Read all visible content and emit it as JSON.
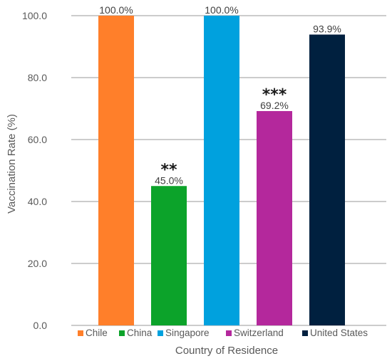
{
  "chart_data": {
    "type": "bar",
    "categories": [
      "Chile",
      "China",
      "Singapore",
      "Switzerland",
      "United States"
    ],
    "values": [
      100.0,
      45.0,
      100.0,
      69.2,
      93.9
    ],
    "data_labels": [
      "100.0%",
      "45.0%",
      "100.0%",
      "69.2%",
      "93.9%"
    ],
    "annotations": [
      "",
      "**",
      "",
      "***",
      ""
    ],
    "colors": [
      "#ff7f2a",
      "#0ca32a",
      "#00a1de",
      "#b4289c",
      "#00203f"
    ],
    "ylim": [
      0,
      100
    ],
    "yticks": [
      "0.0",
      "20.0",
      "40.0",
      "60.0",
      "80.0",
      "100.0"
    ],
    "ytick_values": [
      0,
      20,
      40,
      60,
      80,
      100
    ],
    "xlabel": "Country of Residence",
    "ylabel": "Vaccination Rate (%)",
    "grid": "horizontal",
    "legend_position": "bottom"
  }
}
